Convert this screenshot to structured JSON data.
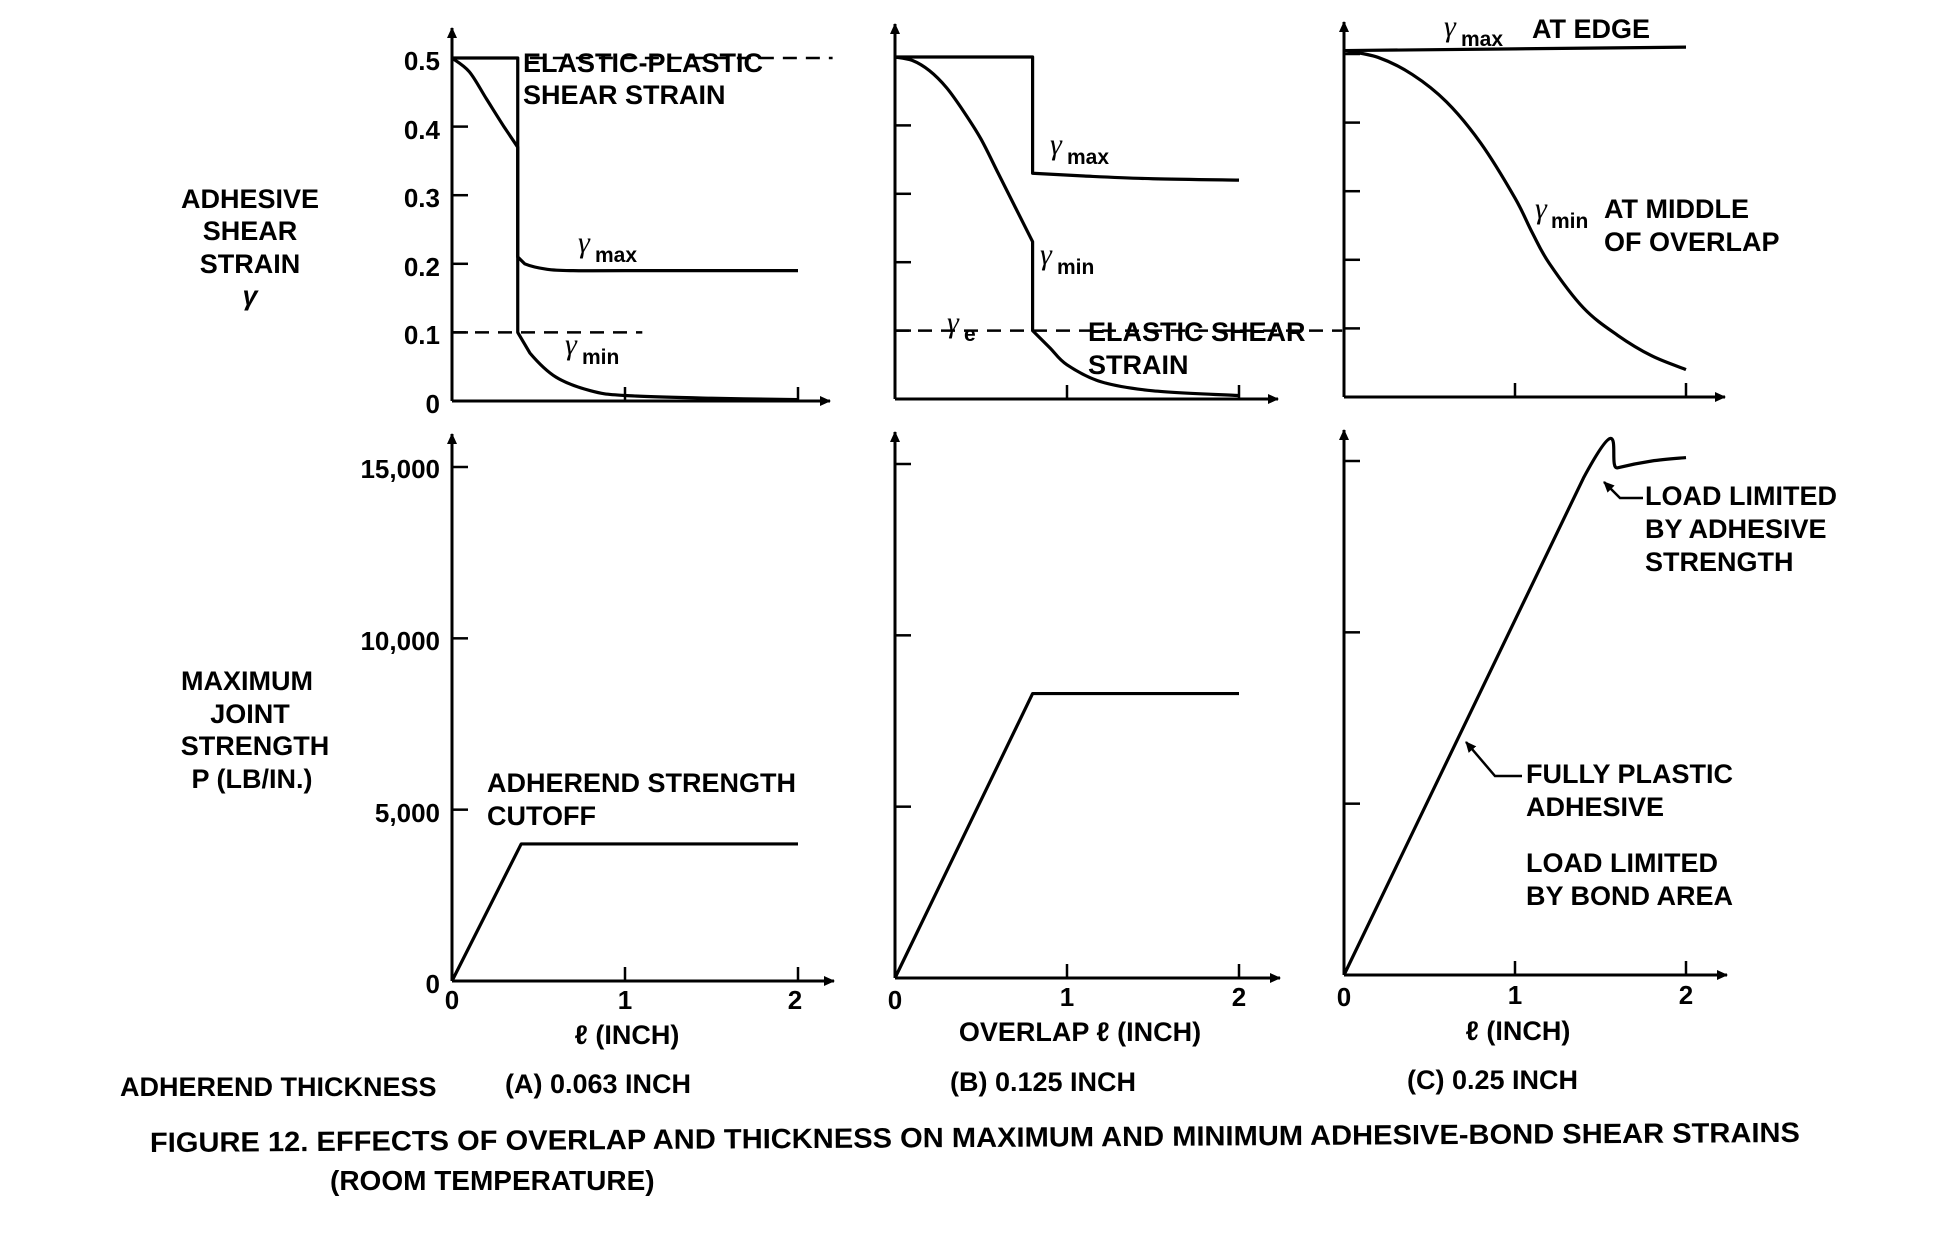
{
  "figure": {
    "title": "FIGURE 12.  EFFECTS OF OVERLAP AND THICKNESS ON MAXIMUM AND MINIMUM ADHESIVE-BOND SHEAR STRAINS",
    "title_line2": "(ROOM TEMPERATURE)",
    "thickness_label": "ADHEREND THICKNESS",
    "top_ylabel": [
      "ADHESIVE",
      "SHEAR",
      "STRAIN",
      "γ"
    ],
    "bottom_ylabel": [
      "MAXIMUM",
      "JOINT",
      "STRENGTH",
      "P (LB/IN.)"
    ],
    "xlabels": [
      "ℓ (INCH)",
      "OVERLAP ℓ (INCH)",
      "ℓ (INCH)"
    ],
    "panel_captions": [
      "(A) 0.063 INCH",
      "(B) 0.125 INCH",
      "(C) 0.25 INCH"
    ],
    "x_ticks": [
      "0",
      "1",
      "2"
    ],
    "top_y_ticks": [
      "0.5",
      "0.4",
      "0.3",
      "0.2",
      "0.1",
      "0"
    ],
    "bottom_y_ticks": [
      "15,000",
      "10,000",
      "5,000",
      "0"
    ],
    "annotations": {
      "a_top_elastic_plastic": [
        "ELASTIC-PLASTIC",
        "SHEAR STRAIN"
      ],
      "a_top_gmax": [
        "γ",
        "max"
      ],
      "a_top_gmin": [
        "γ",
        "min"
      ],
      "b_top_gmax": [
        "γ",
        "max"
      ],
      "b_top_gmin": [
        "γ",
        "min"
      ],
      "b_top_ge": [
        "γ",
        "e"
      ],
      "b_top_elastic": [
        "ELASTIC SHEAR",
        "STRAIN"
      ],
      "c_top_gmax": [
        "γ",
        "max",
        "AT EDGE"
      ],
      "c_top_gmin": [
        "γ",
        "min",
        "AT MIDDLE",
        "OF OVERLAP"
      ],
      "a_bottom_cutoff": [
        "ADHEREND STRENGTH",
        "CUTOFF"
      ],
      "c_bottom_adhesive": [
        "LOAD LIMITED",
        "BY ADHESIVE",
        "STRENGTH"
      ],
      "c_bottom_plastic": [
        "FULLY PLASTIC",
        "ADHESIVE"
      ],
      "c_bottom_bond": [
        "LOAD LIMITED",
        "BY BOND AREA"
      ]
    }
  },
  "chart_data": [
    {
      "type": "line",
      "panel": "A top",
      "ylabel": "ADHESIVE SHEAR STRAIN γ",
      "xlabel": "ℓ (INCH)",
      "xlim": [
        0,
        2.2
      ],
      "ylim": [
        0,
        0.5
      ],
      "series": [
        {
          "name": "γmax",
          "x": [
            0,
            0.38,
            0.38,
            0.42,
            0.55,
            0.7,
            1.0,
            2.0
          ],
          "y": [
            0.5,
            0.5,
            0.21,
            0.2,
            0.192,
            0.19,
            0.19,
            0.19
          ]
        },
        {
          "name": "γmin",
          "x": [
            0,
            0.1,
            0.2,
            0.3,
            0.38,
            0.38,
            0.45,
            0.6,
            0.8,
            1.0,
            1.5,
            2.0
          ],
          "y": [
            0.5,
            0.48,
            0.44,
            0.4,
            0.37,
            0.1,
            0.07,
            0.035,
            0.015,
            0.008,
            0.004,
            0.002
          ]
        },
        {
          "name": "ELASTIC-PLASTIC SHEAR STRAIN",
          "x": [
            0.45,
            2.2
          ],
          "y": [
            0.5,
            0.5
          ],
          "dashed": true
        },
        {
          "name": "ELASTIC SHEAR STRAIN",
          "x": [
            0,
            1.1
          ],
          "y": [
            0.1,
            0.1
          ],
          "dashed": true
        }
      ]
    },
    {
      "type": "line",
      "panel": "B top",
      "xlabel": "OVERLAP ℓ (INCH)",
      "xlim": [
        0,
        2.2
      ],
      "ylim": [
        0,
        0.5
      ],
      "series": [
        {
          "name": "γmax",
          "x": [
            0,
            0.8,
            0.8,
            1.1,
            1.5,
            2.0
          ],
          "y": [
            0.5,
            0.5,
            0.33,
            0.326,
            0.322,
            0.32
          ]
        },
        {
          "name": "γmin",
          "x": [
            0,
            0.1,
            0.2,
            0.3,
            0.4,
            0.5,
            0.6,
            0.7,
            0.8,
            0.8,
            0.9,
            1.0,
            1.2,
            1.5,
            2.0
          ],
          "y": [
            0.5,
            0.495,
            0.48,
            0.455,
            0.42,
            0.38,
            0.33,
            0.28,
            0.23,
            0.1,
            0.075,
            0.05,
            0.025,
            0.012,
            0.005
          ]
        },
        {
          "name": "γe",
          "x": [
            0,
            2.6
          ],
          "y": [
            0.1,
            0.1
          ],
          "dashed": true
        }
      ]
    },
    {
      "type": "line",
      "panel": "C top",
      "xlabel": "ℓ (INCH)",
      "xlim": [
        0,
        2.2
      ],
      "ylim": [
        0,
        0.5
      ],
      "series": [
        {
          "name": "γmax AT EDGE",
          "x": [
            0,
            2.0
          ],
          "y": [
            0.505,
            0.51
          ]
        },
        {
          "name": "γmin AT MIDDLE OF OVERLAP",
          "x": [
            0,
            0.2,
            0.4,
            0.6,
            0.8,
            1.0,
            1.1,
            1.2,
            1.4,
            1.6,
            1.8,
            2.0
          ],
          "y": [
            0.505,
            0.495,
            0.47,
            0.43,
            0.37,
            0.29,
            0.24,
            0.195,
            0.13,
            0.09,
            0.06,
            0.04
          ]
        }
      ]
    },
    {
      "type": "line",
      "panel": "A bottom",
      "ylabel": "MAXIMUM JOINT STRENGTH P (LB/IN.)",
      "xlabel": "ℓ (INCH)",
      "xlim": [
        0,
        2.2
      ],
      "ylim": [
        0,
        15000
      ],
      "series": [
        {
          "name": "P",
          "x": [
            0,
            0.4,
            2.0
          ],
          "y": [
            0,
            4000,
            4000
          ]
        }
      ]
    },
    {
      "type": "line",
      "panel": "B bottom",
      "xlabel": "OVERLAP ℓ (INCH)",
      "xlim": [
        0,
        2.2
      ],
      "ylim": [
        0,
        15000
      ],
      "series": [
        {
          "name": "P",
          "x": [
            0,
            0.8,
            2.0
          ],
          "y": [
            0,
            8300,
            8300
          ]
        }
      ]
    },
    {
      "type": "line",
      "panel": "C bottom",
      "xlabel": "ℓ (INCH)",
      "xlim": [
        0,
        2.2
      ],
      "ylim": [
        0,
        15000
      ],
      "series": [
        {
          "name": "P",
          "x": [
            0,
            1.4,
            1.6,
            1.8,
            2.0
          ],
          "y": [
            0,
            14500,
            14800,
            15000,
            15100
          ]
        }
      ]
    }
  ]
}
